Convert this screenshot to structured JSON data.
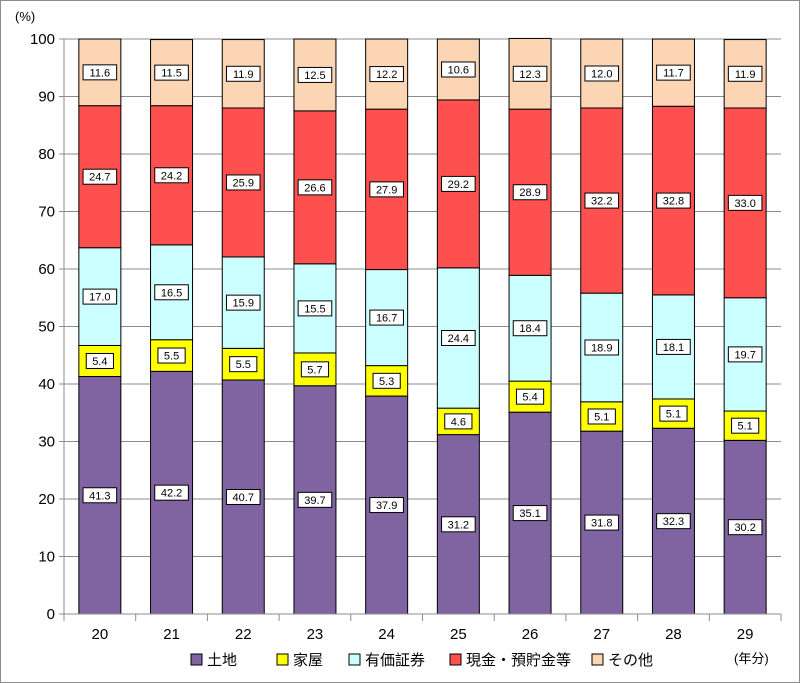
{
  "chart_data": {
    "type": "bar",
    "stacked": true,
    "y_unit_label": "(%)",
    "x_unit_label": "(年分)",
    "ylim": [
      0,
      100
    ],
    "y_ticks": [
      0,
      10,
      20,
      30,
      40,
      50,
      60,
      70,
      80,
      90,
      100
    ],
    "categories": [
      "20",
      "21",
      "22",
      "23",
      "24",
      "25",
      "26",
      "27",
      "28",
      "29"
    ],
    "series": [
      {
        "name": "土地",
        "color": "#8064a2",
        "values": [
          41.3,
          42.2,
          40.7,
          39.7,
          37.9,
          31.2,
          35.1,
          31.8,
          32.3,
          30.2
        ]
      },
      {
        "name": "家屋",
        "color": "#ffff00",
        "values": [
          5.4,
          5.5,
          5.5,
          5.7,
          5.3,
          4.6,
          5.4,
          5.1,
          5.1,
          5.1
        ]
      },
      {
        "name": "有価証券",
        "color": "#ccffff",
        "values": [
          17.0,
          16.5,
          15.9,
          15.5,
          16.7,
          24.4,
          18.4,
          18.9,
          18.1,
          19.7
        ]
      },
      {
        "name": "現金・預貯金等",
        "color": "#ff5050",
        "values": [
          24.7,
          24.2,
          25.9,
          26.6,
          27.9,
          29.2,
          28.9,
          32.2,
          32.8,
          33.0
        ]
      },
      {
        "name": "その他",
        "color": "#fcd5b5",
        "values": [
          11.6,
          11.5,
          11.9,
          12.5,
          12.2,
          10.6,
          12.3,
          12.0,
          11.7,
          11.9
        ]
      }
    ],
    "legend_position": "bottom",
    "grid": true
  }
}
